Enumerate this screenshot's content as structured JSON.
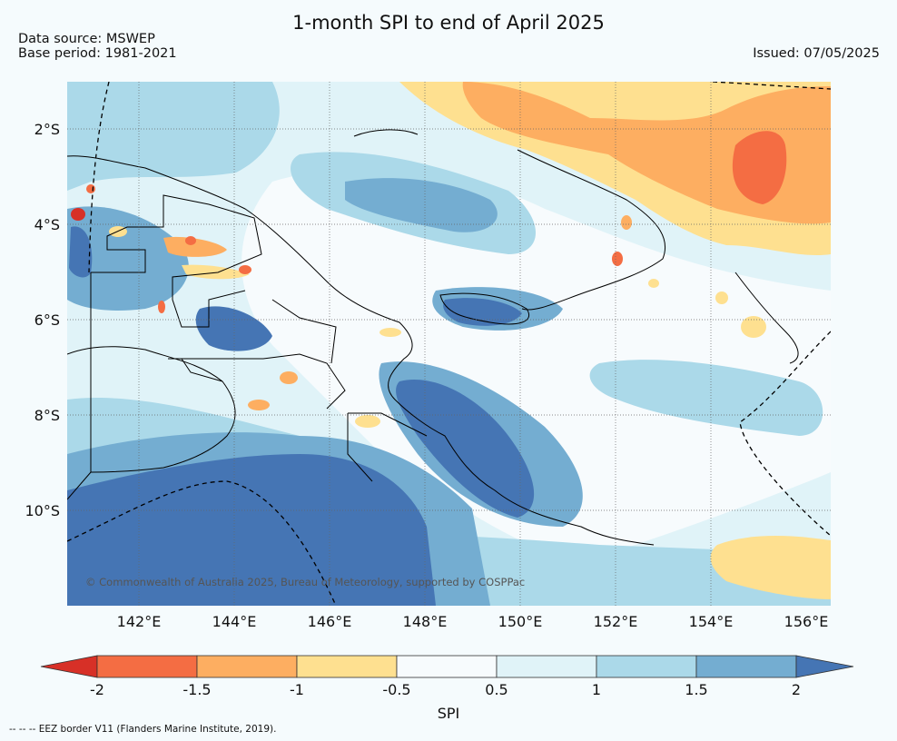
{
  "header": {
    "title": "1-month SPI to end of April 2025",
    "data_source": "Data source: MSWEP",
    "base_period": "Base period: 1981-2021",
    "issued": "Issued: 07/05/2025"
  },
  "map": {
    "lat_labels": [
      "2°S",
      "4°S",
      "6°S",
      "8°S",
      "10°S"
    ],
    "lon_labels": [
      "142°E",
      "144°E",
      "146°E",
      "148°E",
      "150°E",
      "152°E",
      "154°E",
      "156°E"
    ],
    "copyright": "© Commonwealth of Australia 2025, Bureau of Meteorology, supported by COSPPac"
  },
  "colorbar": {
    "label": "SPI",
    "ticks": [
      "-2",
      "-1.5",
      "-1",
      "-0.5",
      "0.5",
      "1",
      "1.5",
      "2"
    ],
    "colors": [
      "#d73027",
      "#f46d43",
      "#fdae61",
      "#fee090",
      "#f7fbfd",
      "#e0f3f8",
      "#abd9e9",
      "#74add1",
      "#4575b4"
    ]
  },
  "footnote": "--  --  -- EEZ border V11 (Flanders Marine Institute, 2019)."
}
